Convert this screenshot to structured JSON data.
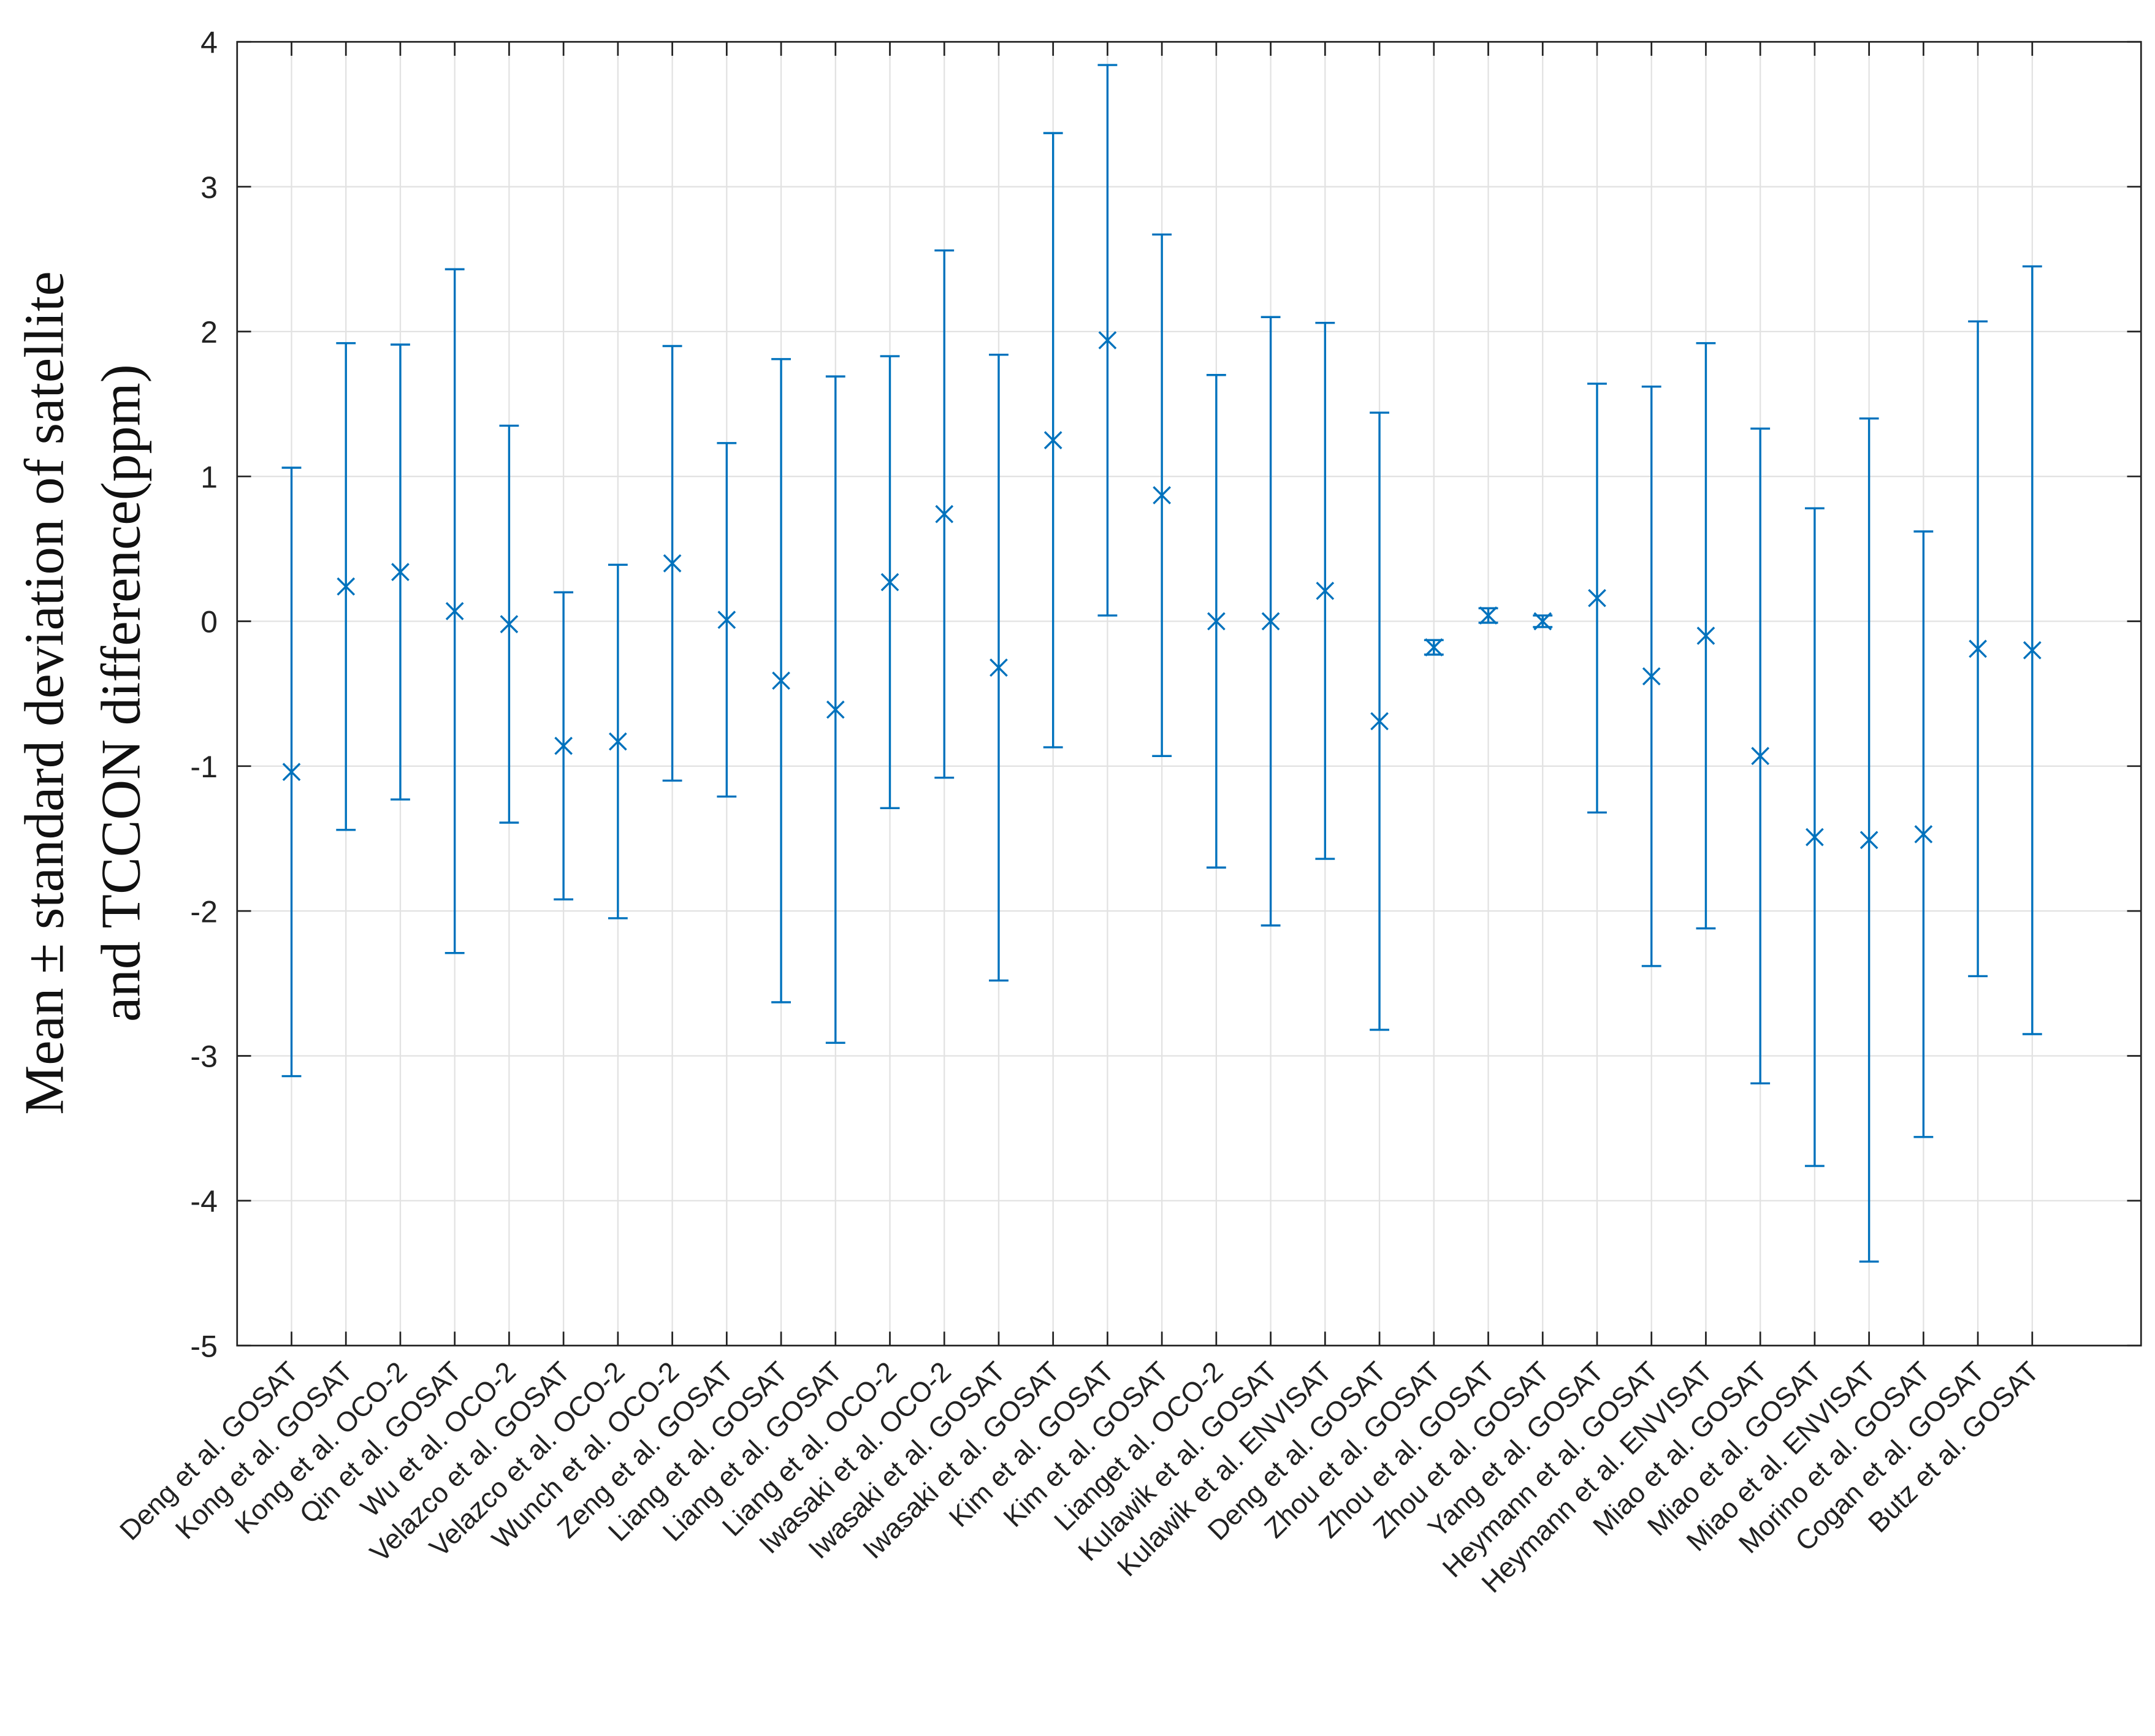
{
  "chart_data": {
    "type": "errorbar",
    "ylabel": [
      "Mean ± standard deviation of satellite",
      "and TCCON difference(ppm)"
    ],
    "categories": [
      "Deng et al. GOSAT",
      "Kong et al. GOSAT",
      "Kong et al. OCO-2",
      "Qin et al. GOSAT",
      "Wu et al. OCO-2",
      "Velazco et al. GOSAT",
      "Velazco et al. OCO-2",
      "Wunch et al. OCO-2",
      "Zeng et al. GOSAT",
      "Liang et al. GOSAT",
      "Liang et al. GOSAT",
      "Liang et al. OCO-2",
      "Iwasaki et al. OCO-2",
      "Iwasaki et al. GOSAT",
      "Iwasaki et al. GOSAT",
      "Kim et al. GOSAT",
      "Kim et al. GOSAT",
      "Lianget al. OCO-2",
      "Kulawik et al. GOSAT",
      "Kulawik et al. ENVISAT",
      "Deng et al. GOSAT",
      "Zhou et al. GOSAT",
      "Zhou et al. GOSAT",
      "Zhou et al. GOSAT",
      "Yang et al. GOSAT",
      "Heymann et al. GOSAT",
      "Heymann et al. ENVISAT",
      "Miao et al. GOSAT",
      "Miao et al. GOSAT",
      "Miao et al. ENVISAT",
      "Morino et al. GOSAT",
      "Cogan et al. GOSAT",
      "Butz et al. GOSAT"
    ],
    "values": [
      -1.04,
      0.24,
      0.34,
      0.07,
      -0.02,
      -0.86,
      -0.83,
      0.4,
      0.01,
      -0.41,
      -0.61,
      0.27,
      0.74,
      -0.32,
      1.25,
      1.94,
      0.87,
      0.0,
      0.0,
      0.21,
      -0.69,
      -0.18,
      0.04,
      0.0,
      0.16,
      -0.38,
      -0.1,
      -0.93,
      -1.49,
      -1.51,
      -1.47,
      -0.19,
      -0.2
    ],
    "errors": [
      2.1,
      1.68,
      1.57,
      2.36,
      1.37,
      1.06,
      1.22,
      1.5,
      1.22,
      2.22,
      2.3,
      1.56,
      1.82,
      2.16,
      2.12,
      1.9,
      1.8,
      1.7,
      2.1,
      1.85,
      2.13,
      0.05,
      0.05,
      0.04,
      1.48,
      2.0,
      2.02,
      2.26,
      2.27,
      2.91,
      2.09,
      2.26,
      2.65
    ],
    "color": "#0072bd",
    "xlim": [
      0,
      35
    ],
    "ylim": [
      -5,
      4
    ],
    "yticks": [
      -5,
      -4,
      -3,
      -2,
      -1,
      0,
      1,
      2,
      3,
      4
    ],
    "grid": true
  }
}
